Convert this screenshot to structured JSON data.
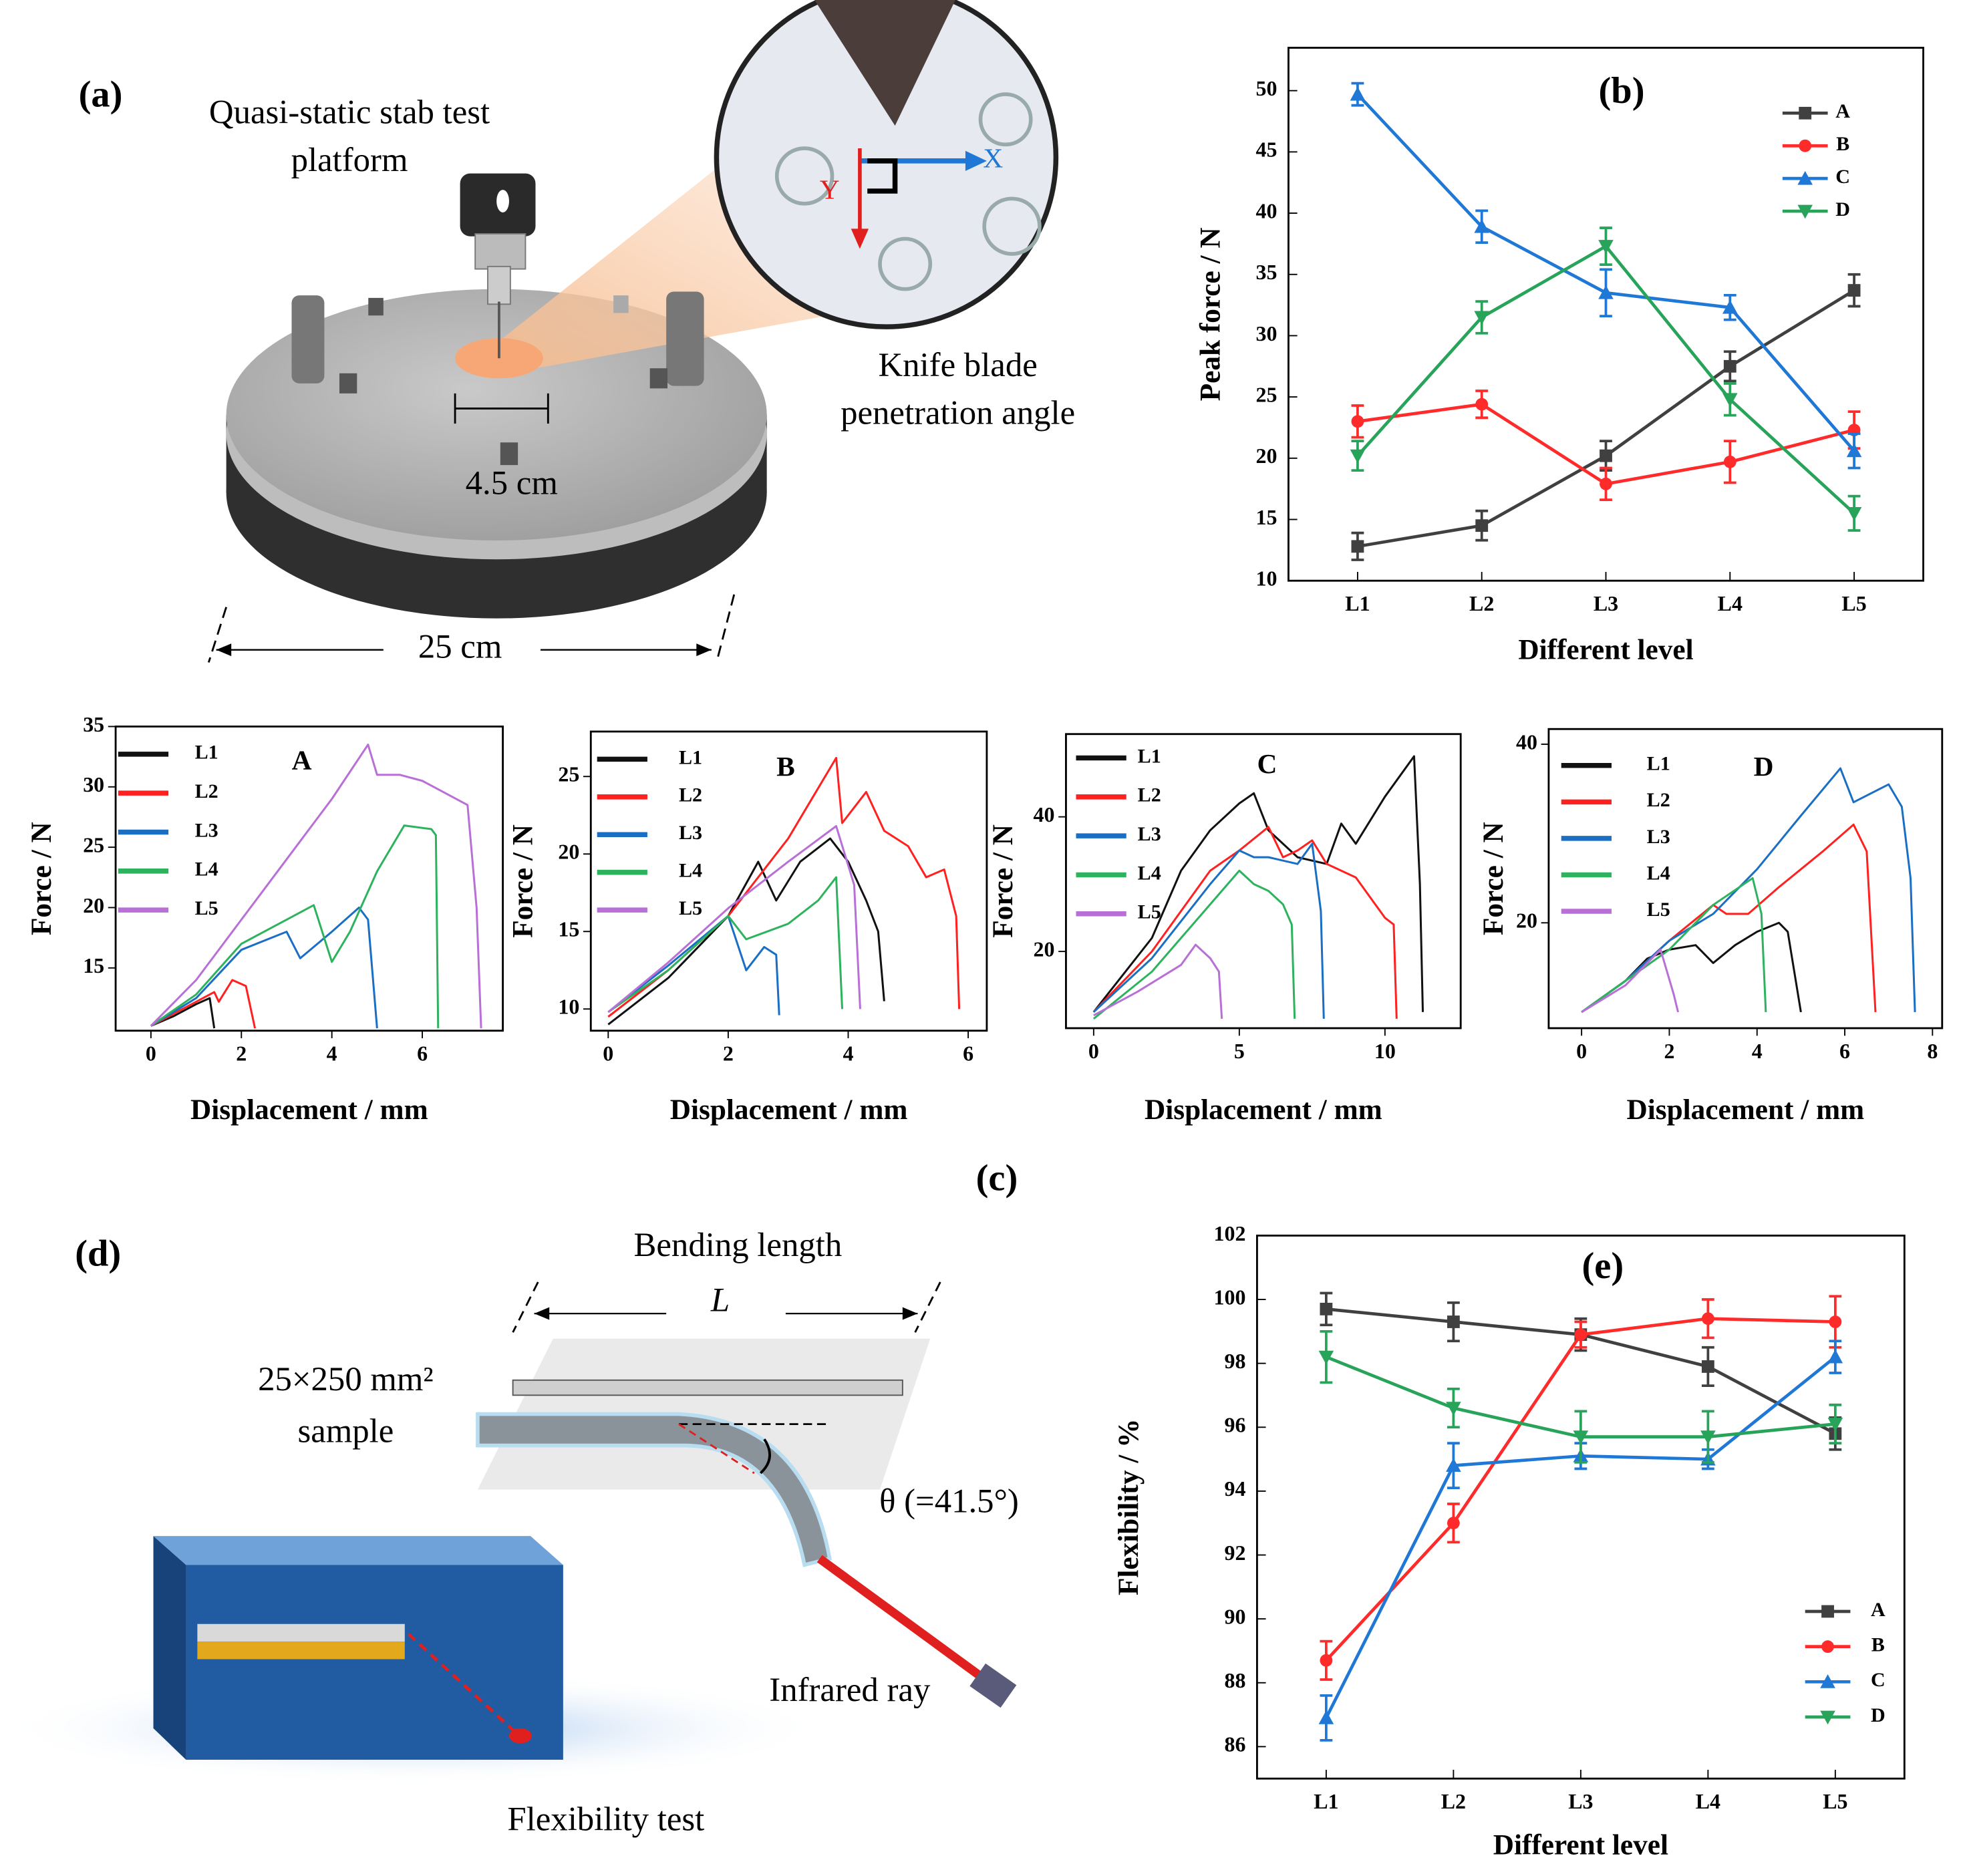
{
  "chart_data": [
    {
      "type": "line",
      "title": "(b)",
      "xlabel": "Different level",
      "ylabel": "Peak force / N",
      "categories": [
        "L1",
        "L2",
        "L3",
        "L4",
        "L5"
      ],
      "ylim": [
        10,
        53.5
      ],
      "yticks": [
        10,
        15,
        20,
        25,
        30,
        35,
        40,
        45,
        50
      ],
      "legend": "upper right",
      "series": [
        {
          "name": "A",
          "color": "#404040",
          "marker": "square",
          "values": [
            12.8,
            14.5,
            20.2,
            27.5,
            33.7
          ],
          "errors": [
            1.1,
            1.2,
            1.2,
            1.2,
            1.3
          ]
        },
        {
          "name": "B",
          "color": "#ff2a2a",
          "marker": "circle",
          "values": [
            23,
            24.4,
            17.9,
            19.7,
            22.3
          ],
          "errors": [
            1.3,
            1.1,
            1.3,
            1.7,
            1.5
          ]
        },
        {
          "name": "C",
          "color": "#1f78d6",
          "marker": "triangle-up",
          "values": [
            49.7,
            38.9,
            33.5,
            32.3,
            20.6
          ],
          "errors": [
            0.9,
            1.3,
            1.9,
            1.0,
            1.4
          ]
        },
        {
          "name": "D",
          "color": "#27a35a",
          "marker": "triangle-down",
          "values": [
            20.2,
            31.5,
            37.3,
            24.8,
            15.5
          ],
          "errors": [
            1.2,
            1.3,
            1.5,
            1.3,
            1.4
          ]
        }
      ]
    },
    {
      "type": "line",
      "title": "A",
      "xlabel": "Displacement / mm",
      "ylabel": "Force / N",
      "xlim": [
        -0.78,
        7.78
      ],
      "ylim": [
        9.8,
        35
      ],
      "xticks": [
        0,
        2,
        4,
        6
      ],
      "yticks": [
        15,
        20,
        25,
        30,
        35
      ],
      "legend": "upper left",
      "series": [
        {
          "name": "L1",
          "color": "#111111",
          "x": [
            0,
            0.5,
            1,
            1.3,
            1.4
          ],
          "values": [
            10.2,
            11,
            12,
            12.5,
            10
          ]
        },
        {
          "name": "L2",
          "color": "#ff2020",
          "x": [
            0,
            1,
            1.4,
            1.5,
            1.8,
            2.1,
            2.3
          ],
          "values": [
            10.2,
            12.2,
            13,
            12.2,
            14,
            13.5,
            10
          ]
        },
        {
          "name": "L3",
          "color": "#1a6fc4",
          "x": [
            0,
            1,
            2,
            3,
            3.3,
            4,
            4.6,
            4.8,
            5
          ],
          "values": [
            10.2,
            12.5,
            16.5,
            18,
            15.8,
            18,
            20,
            19,
            10
          ]
        },
        {
          "name": "L4",
          "color": "#2db35d",
          "x": [
            0,
            1,
            2,
            3,
            3.6,
            4,
            4.4,
            5,
            5.6,
            6.2,
            6.3,
            6.35
          ],
          "values": [
            10.2,
            12.8,
            17,
            19,
            20.2,
            15.5,
            18,
            23,
            26.8,
            26.5,
            26,
            10
          ]
        },
        {
          "name": "L5",
          "color": "#b86fd6",
          "x": [
            0,
            1,
            2,
            3,
            4,
            4.8,
            5,
            5.5,
            6,
            6.5,
            7,
            7.2,
            7.3
          ],
          "values": [
            10.2,
            14,
            19,
            24,
            29,
            33.5,
            31,
            31,
            30.5,
            29.5,
            28.5,
            20,
            10
          ]
        }
      ]
    },
    {
      "type": "line",
      "title": "B",
      "xlabel": "Displacement / mm",
      "ylabel": "Force / N",
      "xlim": [
        -0.29,
        6.31
      ],
      "ylim": [
        8.6,
        27.9
      ],
      "xticks": [
        0,
        2,
        4,
        6
      ],
      "yticks": [
        10,
        15,
        20,
        25
      ],
      "legend": "upper left",
      "series": [
        {
          "name": "L1",
          "color": "#111111",
          "x": [
            0,
            1,
            2,
            2.5,
            2.8,
            3.2,
            3.7,
            4,
            4.3,
            4.5,
            4.6
          ],
          "values": [
            9,
            12,
            16,
            19.5,
            17,
            19.5,
            21,
            19.5,
            17,
            15,
            10.5
          ]
        },
        {
          "name": "L2",
          "color": "#ff2020",
          "x": [
            0,
            1,
            2,
            3,
            3.8,
            3.9,
            4.3,
            4.6,
            5,
            5.3,
            5.6,
            5.8,
            5.85
          ],
          "values": [
            9.5,
            12.5,
            16,
            21,
            26.2,
            22,
            24,
            21.5,
            20.5,
            18.5,
            19,
            16,
            10
          ]
        },
        {
          "name": "L3",
          "color": "#1a6fc4",
          "x": [
            0,
            1,
            2,
            2.3,
            2.6,
            2.8,
            2.85
          ],
          "values": [
            9.8,
            12.8,
            16,
            12.5,
            14,
            13.5,
            9.6
          ]
        },
        {
          "name": "L4",
          "color": "#2db35d",
          "x": [
            0,
            1,
            2,
            2.3,
            3,
            3.5,
            3.8,
            3.9
          ],
          "values": [
            9.8,
            12.5,
            16,
            14.5,
            15.5,
            17,
            18.5,
            10
          ]
        },
        {
          "name": "L5",
          "color": "#b86fd6",
          "x": [
            0,
            1,
            2,
            3,
            3.8,
            4.1,
            4.2
          ],
          "values": [
            9.8,
            13,
            16.5,
            19.5,
            21.8,
            18,
            10
          ]
        }
      ]
    },
    {
      "type": "line",
      "title": "C",
      "xlabel": "Displacement / mm",
      "ylabel": "Force / N",
      "xlim": [
        -0.95,
        12.6
      ],
      "ylim": [
        8.6,
        52.3
      ],
      "xticks": [
        0,
        5,
        10
      ],
      "yticks": [
        20,
        40
      ],
      "legend": "upper left",
      "series": [
        {
          "name": "L1",
          "color": "#111111",
          "x": [
            0,
            2,
            3,
            4,
            5,
            5.5,
            6,
            7,
            8,
            8.5,
            9,
            10,
            11,
            11.2,
            11.3
          ],
          "values": [
            11,
            22,
            32,
            38,
            42,
            43.5,
            38,
            34,
            33,
            39,
            36,
            43,
            49,
            30,
            11
          ]
        },
        {
          "name": "L2",
          "color": "#ff2020",
          "x": [
            0,
            2,
            4,
            5,
            6,
            6.5,
            7,
            7.5,
            8,
            9,
            10,
            10.3,
            10.4
          ],
          "values": [
            11,
            20,
            32,
            35,
            38.5,
            34,
            35,
            36.5,
            33,
            31,
            25,
            24,
            10
          ]
        },
        {
          "name": "L3",
          "color": "#1a6fc4",
          "x": [
            0,
            2,
            4,
            5,
            5.5,
            6,
            7,
            7.5,
            7.8,
            7.9
          ],
          "values": [
            11,
            19,
            30,
            35,
            34,
            34,
            33,
            36,
            26,
            10
          ]
        },
        {
          "name": "L4",
          "color": "#2db35d",
          "x": [
            0,
            2,
            4,
            5,
            5.5,
            6,
            6.5,
            6.8,
            6.9
          ],
          "values": [
            10,
            17,
            27,
            32,
            30,
            29,
            27,
            24,
            10
          ]
        },
        {
          "name": "L5",
          "color": "#b86fd6",
          "x": [
            0,
            1.5,
            3,
            3.5,
            4,
            4.3,
            4.4
          ],
          "values": [
            10.5,
            14,
            18,
            21,
            19,
            17,
            10
          ]
        }
      ]
    },
    {
      "type": "line",
      "title": "D",
      "xlabel": "Displacement / mm",
      "ylabel": "Force / N",
      "xlim": [
        -0.75,
        8.22
      ],
      "ylim": [
        8.2,
        41.7
      ],
      "xticks": [
        0,
        2,
        4,
        6,
        8
      ],
      "yticks": [
        20,
        40
      ],
      "legend": "upper left",
      "series": [
        {
          "name": "L1",
          "color": "#111111",
          "x": [
            0,
            1,
            1.5,
            2,
            2.6,
            3,
            3.5,
            4,
            4.5,
            4.7,
            5
          ],
          "values": [
            10,
            13.5,
            16,
            17,
            17.5,
            15.5,
            17.5,
            19,
            20,
            19,
            10
          ]
        },
        {
          "name": "L2",
          "color": "#ff2020",
          "x": [
            0,
            1,
            2,
            3,
            3.3,
            3.8,
            4.5,
            5.5,
            6.2,
            6.5,
            6.7
          ],
          "values": [
            10,
            13.5,
            18,
            22,
            21,
            21,
            24,
            28,
            31,
            28,
            10
          ]
        },
        {
          "name": "L3",
          "color": "#1a6fc4",
          "x": [
            0,
            1,
            2,
            3,
            4,
            5,
            5.9,
            6.2,
            7,
            7.3,
            7.5,
            7.6
          ],
          "values": [
            10,
            13.5,
            18,
            21,
            26,
            32,
            37.3,
            33.5,
            35.5,
            33,
            25,
            10
          ]
        },
        {
          "name": "L4",
          "color": "#2db35d",
          "x": [
            0,
            1,
            2,
            3,
            3.9,
            4.1,
            4.2
          ],
          "values": [
            10,
            13.5,
            17,
            22,
            25,
            21,
            10
          ]
        },
        {
          "name": "L5",
          "color": "#b86fd6",
          "x": [
            0,
            1,
            1.8,
            2.1,
            2.2
          ],
          "values": [
            10,
            13,
            17,
            12,
            10
          ]
        }
      ]
    },
    {
      "type": "line",
      "title": "(e)",
      "xlabel": "Different level",
      "ylabel": "Flexibility / %",
      "categories": [
        "L1",
        "L2",
        "L3",
        "L4",
        "L5"
      ],
      "ylim": [
        85,
        102
      ],
      "yticks": [
        86,
        88,
        90,
        92,
        94,
        96,
        98,
        100,
        102
      ],
      "legend": "lower right",
      "series": [
        {
          "name": "A",
          "color": "#404040",
          "marker": "square",
          "values": [
            99.7,
            99.3,
            98.9,
            97.9,
            95.8
          ],
          "errors": [
            0.5,
            0.6,
            0.5,
            0.6,
            0.5
          ]
        },
        {
          "name": "B",
          "color": "#ff2a2a",
          "marker": "circle",
          "values": [
            88.7,
            93.0,
            98.9,
            99.4,
            99.3
          ],
          "errors": [
            0.6,
            0.6,
            0.4,
            0.6,
            0.8
          ]
        },
        {
          "name": "C",
          "color": "#1f78d6",
          "marker": "triangle-up",
          "values": [
            86.9,
            94.8,
            95.1,
            95.0,
            98.2
          ],
          "errors": [
            0.7,
            0.7,
            0.4,
            0.3,
            0.5
          ]
        },
        {
          "name": "D",
          "color": "#27a35a",
          "marker": "triangle-down",
          "values": [
            98.2,
            96.6,
            95.7,
            95.7,
            96.1
          ],
          "errors": [
            0.8,
            0.6,
            0.8,
            0.8,
            0.6
          ]
        }
      ]
    }
  ],
  "illustrations": {
    "a": {
      "label": "(a)",
      "platform_line1": "Quasi-static stab test",
      "platform_line2": "platform",
      "hole": "4.5 cm",
      "diameter": "25 cm",
      "blade_line1": "Knife blade",
      "blade_line2": "penetration angle",
      "x_axis": "X",
      "y_axis": "Y"
    },
    "c": {
      "label": "(c)"
    },
    "d": {
      "label": "(d)",
      "bending": "Bending length",
      "length": "L",
      "sample_line1": "25×250 mm²",
      "sample_line2": "sample",
      "angle": "θ (=41.5°)",
      "ray": "Infrared ray",
      "test": "Flexibility test"
    }
  }
}
